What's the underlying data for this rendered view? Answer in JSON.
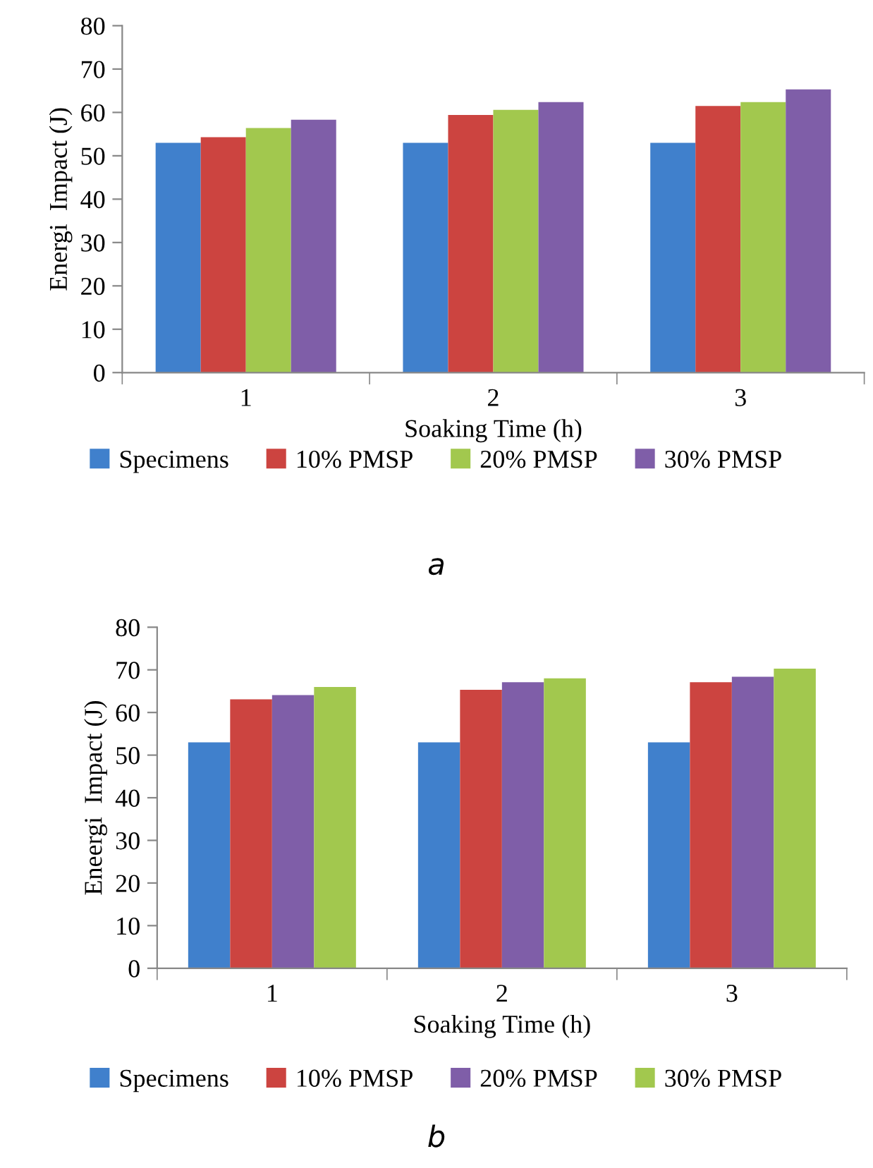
{
  "chart_data": [
    {
      "type": "bar",
      "xlabel": "Soaking Time (h)",
      "ylabel": "Energi  Impact (J)",
      "categories": [
        "1",
        "2",
        "3"
      ],
      "ylim": [
        0,
        80
      ],
      "yticks": [
        0,
        10,
        20,
        30,
        40,
        50,
        60,
        70,
        80
      ],
      "legend": "bottom",
      "annotations": [
        "a"
      ],
      "series": [
        {
          "name": "Specimens",
          "color": "#4080cc",
          "values": [
            53,
            53,
            53
          ]
        },
        {
          "name": "10% PMSP",
          "color": "#cc4440",
          "values": [
            54.3,
            59.4,
            61.5
          ]
        },
        {
          "name": "20% PMSP",
          "color": "#a2c84e",
          "values": [
            56.4,
            60.6,
            62.4
          ]
        },
        {
          "name": "30% PMSP",
          "color": "#7f5ea8",
          "values": [
            58.3,
            62.4,
            65.3
          ]
        }
      ]
    },
    {
      "type": "bar",
      "xlabel": "Soaking Time (h)",
      "ylabel": "Eneergi  Impact (J)",
      "categories": [
        "1",
        "2",
        "3"
      ],
      "ylim": [
        0,
        80
      ],
      "yticks": [
        0,
        10,
        20,
        30,
        40,
        50,
        60,
        70,
        80
      ],
      "legend": "bottom",
      "annotations": [
        "b"
      ],
      "series": [
        {
          "name": "Specimens",
          "color": "#4080cc",
          "values": [
            53,
            53,
            53
          ]
        },
        {
          "name": "10% PMSP",
          "color": "#cc4440",
          "values": [
            63.1,
            65.3,
            67.1
          ]
        },
        {
          "name": "20% PMSP",
          "color": "#7f5ea8",
          "values": [
            64.1,
            67.1,
            68.4
          ]
        },
        {
          "name": "30% PMSP",
          "color": "#a2c84e",
          "values": [
            66.0,
            68.0,
            70.3
          ]
        }
      ]
    }
  ]
}
